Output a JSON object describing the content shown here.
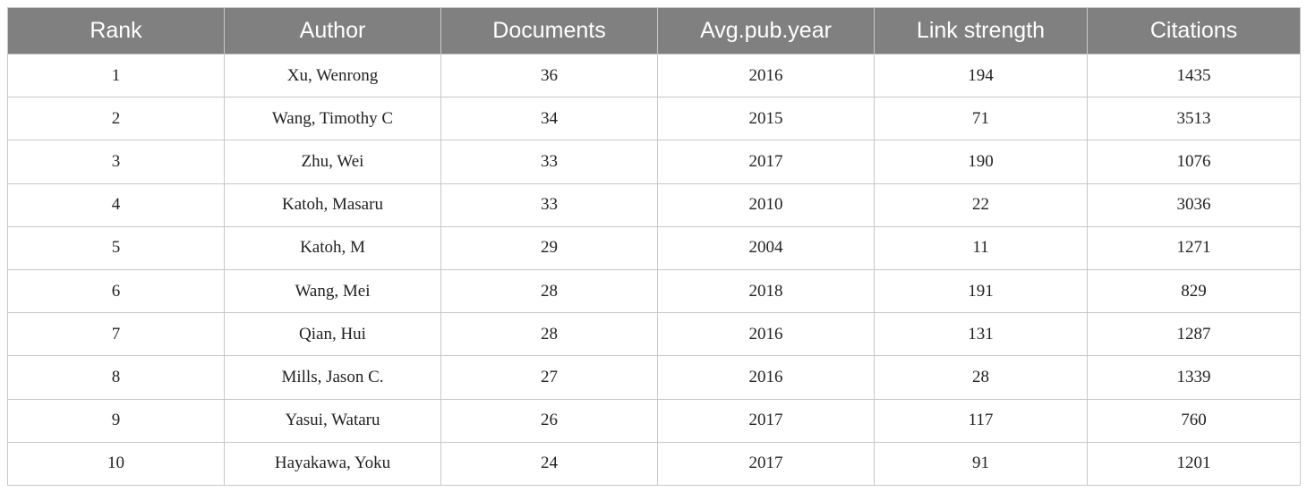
{
  "table": {
    "header": [
      "Rank",
      "Author",
      "Documents",
      "Avg.pub.year",
      "Link strength",
      "Citations"
    ],
    "rows": [
      [
        1,
        "Xu, Wenrong",
        36,
        2016,
        194,
        1435
      ],
      [
        2,
        "Wang, Timothy C",
        34,
        2015,
        71,
        3513
      ],
      [
        3,
        "Zhu, Wei",
        33,
        2017,
        190,
        1076
      ],
      [
        4,
        "Katoh, Masaru",
        33,
        2010,
        22,
        3036
      ],
      [
        5,
        "Katoh, M",
        29,
        2004,
        11,
        1271
      ],
      [
        6,
        "Wang, Mei",
        28,
        2018,
        191,
        829
      ],
      [
        7,
        "Qian, Hui",
        28,
        2016,
        131,
        1287
      ],
      [
        8,
        "Mills, Jason C.",
        27,
        2016,
        28,
        1339
      ],
      [
        9,
        "Yasui, Wataru",
        26,
        2017,
        117,
        760
      ],
      [
        10,
        "Hayakawa, Yoku",
        24,
        2017,
        91,
        1201
      ]
    ]
  }
}
